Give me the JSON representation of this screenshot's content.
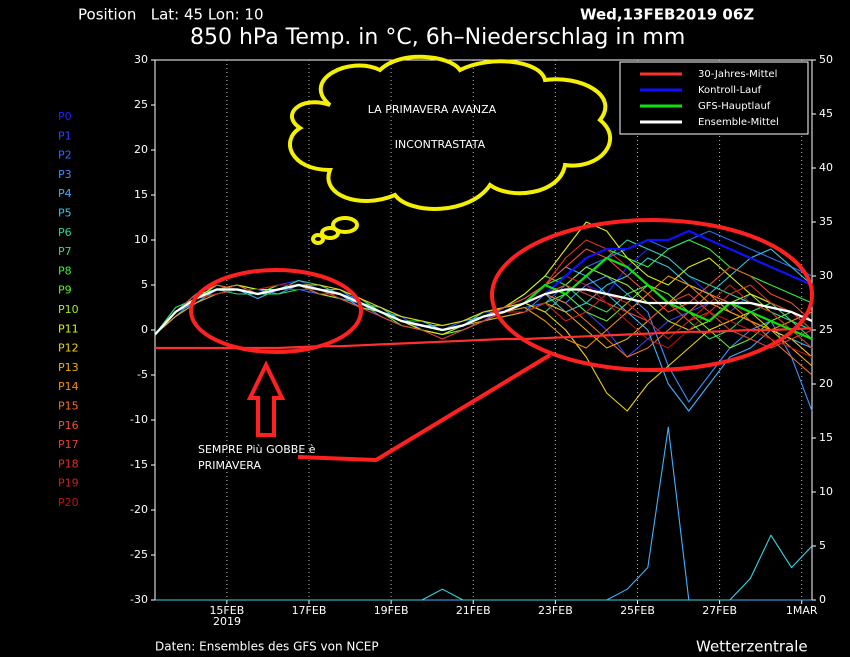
{
  "chart_data": {
    "type": "line",
    "title": "850 hPa Temp. in °C, 6h–Niederschlag in mm",
    "position_label": "Position   Lat: 45 Lon: 10",
    "run_label": "Wed,13FEB2019 06Z",
    "source": "Daten: Ensembles des GFS von NCEP",
    "credit": "Wetterzentrale",
    "x_year_label": "2019",
    "annotations": {
      "cloud": [
        "LA PRIMAVERA AVANZA",
        "INCONTRASTATA"
      ],
      "note": [
        "SEMPRE Più GOBBE è",
        "PRIMAVERA"
      ]
    },
    "xlim": [
      0,
      32
    ],
    "xticks": [
      {
        "value": 3.5,
        "label": "15FEB"
      },
      {
        "value": 7.5,
        "label": "17FEB"
      },
      {
        "value": 11.5,
        "label": "19FEB"
      },
      {
        "value": 15.5,
        "label": "21FEB"
      },
      {
        "value": 19.5,
        "label": "23FEB"
      },
      {
        "value": 23.5,
        "label": "25FEB"
      },
      {
        "value": 27.5,
        "label": "27FEB"
      },
      {
        "value": 31.5,
        "label": "1MAR"
      }
    ],
    "ylim": [
      -30,
      30
    ],
    "yticks": [
      -30,
      -25,
      -20,
      -15,
      -10,
      -5,
      0,
      5,
      10,
      15,
      20,
      25,
      30
    ],
    "y2lim": [
      0,
      50
    ],
    "y2ticks": [
      0,
      5,
      10,
      15,
      20,
      25,
      30,
      35,
      40,
      45,
      50
    ],
    "grid": true,
    "legend": "top-right",
    "series": [
      {
        "name": "P0",
        "color": "#2020ff",
        "values": [
          -0.5,
          2,
          3.5,
          4.5,
          5,
          4,
          4.5,
          5,
          4.5,
          4,
          3,
          2,
          1,
          0.5,
          0,
          0.5,
          1.5,
          2,
          3,
          4,
          6,
          5,
          4,
          7,
          9,
          8,
          6,
          4,
          3,
          2,
          1,
          0,
          -2
        ]
      },
      {
        "name": "P1",
        "color": "#3040ff",
        "values": [
          -0.5,
          2,
          4,
          5,
          4.5,
          4.5,
          5,
          5.5,
          4.5,
          3.5,
          3,
          2.5,
          1.5,
          0,
          -0.5,
          0.5,
          1,
          2.5,
          3.5,
          5,
          4,
          2,
          0,
          -3,
          -1,
          1,
          2,
          3,
          2,
          4,
          3,
          1,
          0
        ]
      },
      {
        "name": "P2",
        "color": "#2a6aff",
        "values": [
          -0.5,
          2,
          3.5,
          4,
          4.5,
          4,
          4.5,
          4.5,
          4,
          4,
          3.5,
          2,
          1,
          1,
          0,
          1,
          2,
          2,
          2.5,
          3,
          5,
          7,
          8,
          9,
          10,
          9,
          10,
          11,
          10,
          9,
          8,
          7,
          6
        ]
      },
      {
        "name": "P3",
        "color": "#3a8fff",
        "values": [
          -0.5,
          1.5,
          3.5,
          4.5,
          5,
          4.5,
          4,
          5,
          5,
          4.5,
          3,
          1.5,
          0.5,
          0,
          -0.5,
          0,
          1,
          1.5,
          2,
          4,
          3,
          5,
          6,
          4,
          2,
          -4,
          -8,
          -5,
          -2,
          0,
          1,
          -3,
          -9
        ]
      },
      {
        "name": "P4",
        "color": "#3ab0ff",
        "values": [
          -0.5,
          2,
          3,
          4.5,
          4.5,
          3.5,
          4.5,
          5,
          4.5,
          4,
          2.5,
          2,
          1,
          0.5,
          0.5,
          1,
          1.5,
          2,
          3,
          5,
          7,
          6,
          4,
          2,
          0,
          -6,
          -9,
          -6,
          -3,
          -2,
          0,
          -1,
          -2
        ]
      },
      {
        "name": "P5",
        "color": "#30c8e0",
        "values": [
          -0.5,
          2,
          3.5,
          5,
          4.5,
          4,
          5,
          5,
          4,
          3.5,
          3,
          2,
          1.5,
          1,
          0,
          0.5,
          2,
          2.5,
          3,
          4,
          2,
          3,
          5,
          6,
          8,
          7,
          5,
          4,
          6,
          8,
          9,
          7,
          5
        ]
      },
      {
        "name": "P6",
        "color": "#30d0a0",
        "values": [
          -0.5,
          2,
          4,
          4.5,
          4,
          4,
          4.5,
          5.5,
          5,
          4,
          3,
          2.5,
          1,
          0,
          -0.5,
          0,
          1,
          2,
          3,
          2,
          4,
          6,
          8,
          10,
          9,
          8,
          6,
          5,
          4,
          3,
          2,
          1,
          0
        ]
      },
      {
        "name": "P7",
        "color": "#30e070",
        "values": [
          -0.5,
          2.5,
          3.5,
          4.5,
          5,
          4.5,
          4.5,
          5,
          4.5,
          4.5,
          3.5,
          2,
          1,
          0.5,
          0,
          0.5,
          1.5,
          2.5,
          4,
          6,
          5,
          3,
          2,
          4,
          5,
          3,
          1,
          -1,
          0,
          2,
          3,
          1,
          -1
        ]
      },
      {
        "name": "P8",
        "color": "#30f040",
        "values": [
          -0.5,
          2,
          3.5,
          4,
          4.5,
          4,
          4,
          4.5,
          4.5,
          4,
          3,
          2,
          1,
          1,
          0.5,
          1,
          2,
          2.5,
          3,
          5,
          6,
          8,
          9,
          8,
          7,
          9,
          10,
          9,
          7,
          6,
          5,
          4,
          3
        ]
      },
      {
        "name": "P9",
        "color": "#60f020",
        "values": [
          -0.5,
          2,
          3.5,
          4.5,
          4.5,
          4,
          5,
          5,
          4.5,
          4,
          3,
          2,
          0.5,
          0,
          -0.5,
          0,
          1,
          2,
          2,
          3,
          4,
          2,
          1,
          3,
          5,
          4,
          2,
          0,
          -2,
          -1,
          1,
          2,
          0
        ]
      },
      {
        "name": "P10",
        "color": "#a0f010",
        "values": [
          -0.5,
          2,
          3.5,
          5,
          4.5,
          4,
          4.5,
          5,
          4,
          3.5,
          2.5,
          2,
          1,
          0.5,
          0,
          0.5,
          1.5,
          2,
          3,
          4,
          5,
          7,
          6,
          5,
          3,
          1,
          0,
          1,
          3,
          4,
          2,
          0,
          -2
        ]
      },
      {
        "name": "P11",
        "color": "#e0f000",
        "values": [
          -0.5,
          2,
          3.5,
          4.5,
          5,
          4.5,
          4.5,
          5,
          4.5,
          4,
          3,
          2,
          1,
          0,
          -0.5,
          0.5,
          1.5,
          2.5,
          4,
          6,
          9,
          12,
          11,
          8,
          6,
          5,
          7,
          8,
          6,
          4,
          3,
          2,
          1
        ]
      },
      {
        "name": "P12",
        "color": "#f0d000",
        "values": [
          -0.5,
          2,
          3.5,
          4.5,
          4.5,
          4,
          4.5,
          5,
          5,
          4.5,
          3.5,
          2.5,
          1.5,
          1,
          0.5,
          1,
          2,
          2.5,
          3,
          2,
          0,
          -3,
          -7,
          -9,
          -6,
          -4,
          -2,
          0,
          1,
          2,
          0,
          -1,
          -3
        ]
      },
      {
        "name": "P13",
        "color": "#f0b000",
        "values": [
          -0.5,
          1.5,
          3,
          4,
          4.5,
          4,
          4.5,
          5,
          4.5,
          4,
          3,
          2,
          1,
          0.5,
          0,
          0.5,
          1,
          1.5,
          2,
          3,
          2,
          0,
          -2,
          -1,
          1,
          3,
          5,
          4,
          2,
          1,
          0,
          -2,
          -4
        ]
      },
      {
        "name": "P14",
        "color": "#f09000",
        "values": [
          -0.5,
          2,
          3.5,
          4.5,
          4.5,
          4.5,
          5,
          5,
          4.5,
          4,
          3,
          2,
          1,
          0.5,
          0,
          0.5,
          1.5,
          2,
          2.5,
          1,
          -1,
          -2,
          0,
          2,
          4,
          6,
          5,
          3,
          2,
          1,
          0,
          1,
          2
        ]
      },
      {
        "name": "P15",
        "color": "#f07020",
        "values": [
          -0.5,
          2,
          3.5,
          4.5,
          5,
          4,
          4.5,
          5,
          4.5,
          4,
          3,
          2,
          1,
          0.5,
          0,
          0.5,
          1.5,
          2,
          3,
          4,
          3,
          1,
          -1,
          -3,
          -2,
          0,
          2,
          4,
          3,
          1,
          -1,
          -3,
          -5
        ]
      },
      {
        "name": "P16",
        "color": "#f05030",
        "values": [
          -0.5,
          2,
          4,
          5,
          4.5,
          4,
          4.5,
          5,
          4,
          4,
          3,
          2,
          1,
          0.5,
          0,
          0.5,
          1.5,
          2.5,
          3.5,
          5,
          7,
          9,
          8,
          6,
          4,
          2,
          3,
          5,
          7,
          6,
          4,
          3,
          1
        ]
      },
      {
        "name": "P17",
        "color": "#e04030",
        "values": [
          -0.5,
          2,
          3.5,
          4.5,
          4.5,
          4,
          4.5,
          5,
          4.5,
          3.5,
          2.5,
          1.5,
          0.5,
          0,
          -1,
          0,
          1,
          2,
          3,
          4,
          5,
          4,
          3,
          2,
          1,
          3,
          4,
          2,
          0,
          -1,
          -2,
          -1,
          0
        ]
      },
      {
        "name": "P18",
        "color": "#e03020",
        "values": [
          -0.5,
          2,
          3.5,
          4.5,
          4.5,
          4,
          4.5,
          5,
          4.5,
          4,
          3,
          2,
          1,
          0.5,
          0,
          0.5,
          1.5,
          2,
          3,
          5,
          8,
          10,
          9,
          7,
          5,
          3,
          1,
          2,
          4,
          5,
          3,
          2,
          0
        ]
      },
      {
        "name": "P19",
        "color": "#d02020",
        "values": [
          -0.5,
          2,
          3.5,
          4,
          4.5,
          4,
          4.5,
          4.5,
          4.5,
          4,
          3,
          2,
          1,
          0.5,
          0,
          0.5,
          1.5,
          2,
          2,
          3,
          1,
          2,
          4,
          3,
          1,
          -1,
          1,
          3,
          5,
          3,
          2,
          0,
          -2
        ]
      },
      {
        "name": "P20",
        "color": "#c01010",
        "values": [
          -0.5,
          2,
          3.5,
          4.5,
          4.5,
          4.5,
          5,
          5,
          4.5,
          4,
          3,
          2,
          1,
          0.5,
          0,
          0.5,
          1.5,
          2,
          3,
          4,
          6,
          5,
          3,
          1,
          -1,
          -2,
          0,
          2,
          1,
          0,
          -1,
          -2,
          -3
        ]
      },
      {
        "name": "30-Jahres-Mittel",
        "color": "#ff3030",
        "values": [
          -2,
          -2,
          -2,
          -2,
          -2,
          -2,
          -2,
          -1.9,
          -1.8,
          -1.8,
          -1.7,
          -1.6,
          -1.5,
          -1.4,
          -1.3,
          -1.2,
          -1.1,
          -1,
          -1,
          -0.9,
          -0.8,
          -0.7,
          -0.6,
          -0.5,
          -0.4,
          -0.3,
          -0.2,
          -0.2,
          -0.1,
          0,
          0,
          0.1,
          0.2
        ]
      },
      {
        "name": "Kontroll-Lauf",
        "color": "#1010ff",
        "values": [
          -0.5,
          2,
          3.5,
          4.5,
          4.5,
          4,
          4.5,
          5,
          4.5,
          4,
          3,
          2,
          1,
          0.5,
          0,
          0.5,
          1.5,
          2,
          3,
          4,
          6,
          8,
          9,
          9,
          10,
          10,
          11,
          10,
          9,
          8,
          7,
          6,
          5
        ]
      },
      {
        "name": "GFS-Hauptlauf",
        "color": "#10e010",
        "values": [
          -0.5,
          2,
          3.5,
          4.5,
          4.5,
          4,
          4.5,
          5,
          4.5,
          4,
          3,
          2,
          1,
          0.5,
          0,
          0.5,
          1.5,
          2,
          3,
          5,
          4,
          6,
          8,
          7,
          5,
          3,
          2,
          1,
          3,
          2,
          1,
          0,
          -1
        ]
      },
      {
        "name": "Ensemble-Mittel",
        "color": "#ffffff",
        "values": [
          -0.5,
          2,
          3.5,
          4.5,
          4.5,
          4,
          4.5,
          5,
          4.5,
          4,
          3,
          2,
          1,
          0.5,
          0,
          0.5,
          1.5,
          2,
          3,
          4,
          4.5,
          4.5,
          4,
          3.5,
          3,
          3,
          3,
          3,
          3,
          3,
          2.5,
          2,
          1
        ]
      },
      {
        "color": "#40b0ff",
        "axis": "y2",
        "values": [
          0,
          0,
          0,
          0,
          0,
          0,
          0,
          0,
          0,
          0,
          0,
          0,
          0,
          0,
          0,
          0,
          0,
          0,
          0,
          0,
          0,
          0,
          0,
          1,
          3,
          16,
          0,
          0,
          0,
          0,
          0,
          0,
          0
        ]
      },
      {
        "color": "#30d8e8",
        "axis": "y2",
        "values": [
          0,
          0,
          0,
          0,
          0,
          0,
          0,
          0,
          0,
          0,
          0,
          0,
          0,
          0,
          1,
          0,
          0,
          0,
          0,
          0,
          0,
          0,
          0,
          0,
          0,
          0,
          0,
          0,
          0,
          2,
          6,
          3,
          5
        ]
      }
    ]
  }
}
